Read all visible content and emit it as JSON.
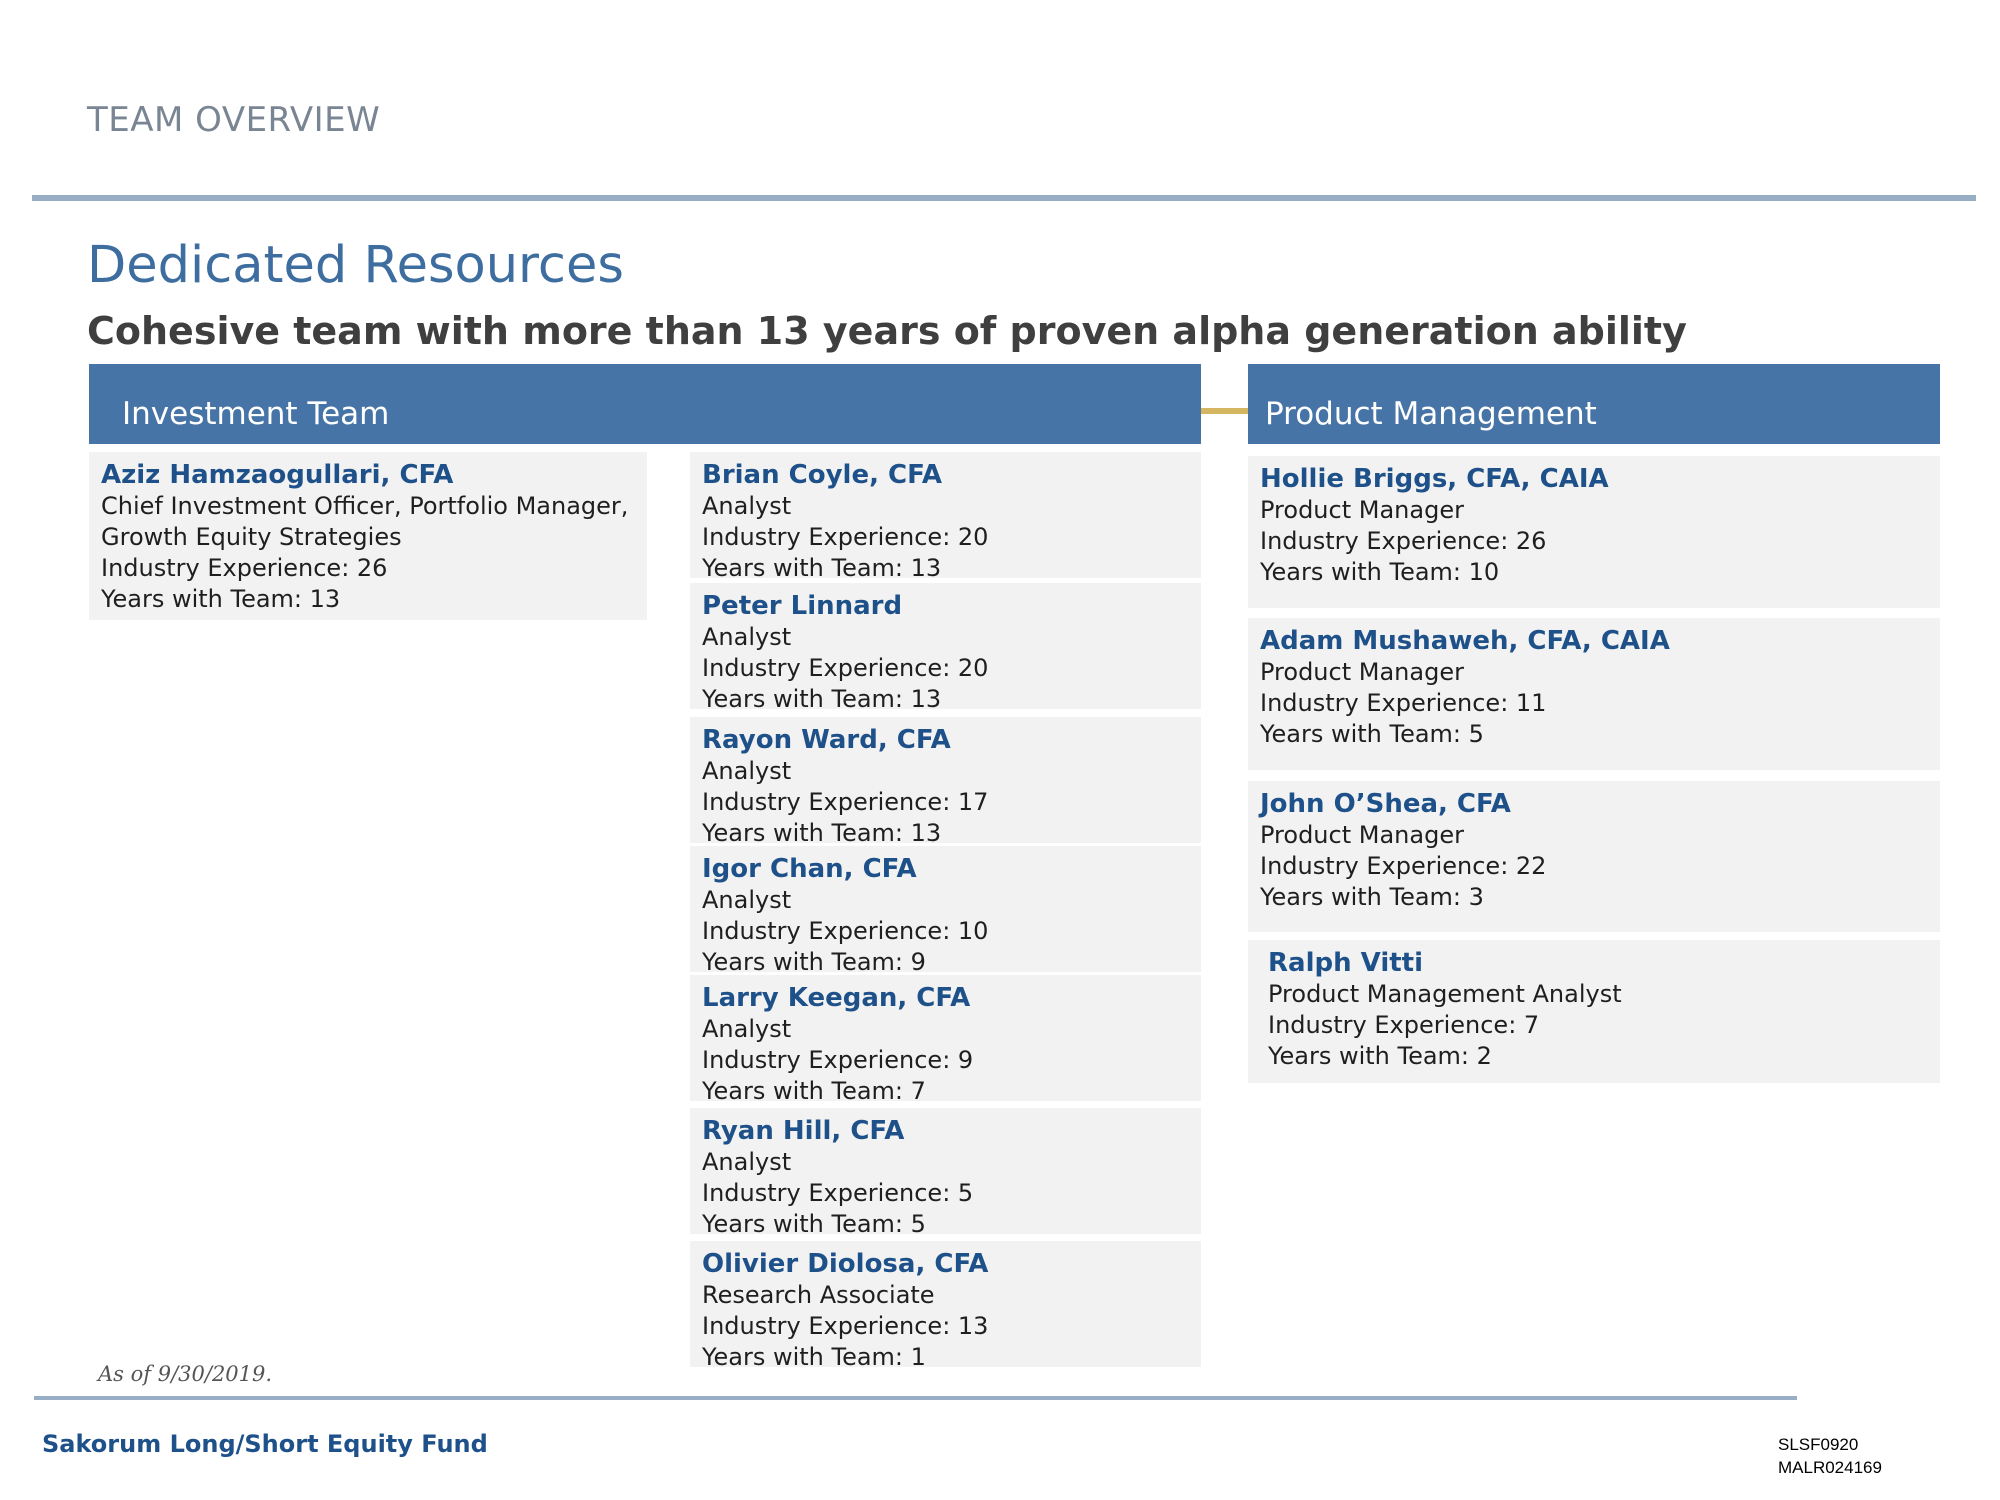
{
  "header": {
    "section_label": "TEAM OVERVIEW",
    "title": "Dedicated Resources",
    "subtitle": "Cohesive team with more than 13 years of proven alpha generation ability"
  },
  "investment_team": {
    "heading": "Investment Team",
    "lead": {
      "name": "Aziz Hamzaogullari, CFA",
      "role_line1": "Chief Investment Officer, Portfolio Manager,",
      "role_line2": "Growth Equity Strategies",
      "experience": "Industry Experience: 26",
      "tenure": "Years with Team: 13"
    },
    "members": [
      {
        "name": "Brian Coyle, CFA",
        "role": "Analyst",
        "experience": "Industry Experience: 20",
        "tenure": "Years with Team: 13"
      },
      {
        "name": "Peter Linnard",
        "role": "Analyst",
        "experience": "Industry Experience: 20",
        "tenure": "Years with Team: 13"
      },
      {
        "name": "Rayon Ward, CFA",
        "role": "Analyst",
        "experience": "Industry Experience: 17",
        "tenure": "Years with Team: 13"
      },
      {
        "name": "Igor Chan, CFA",
        "role": "Analyst",
        "experience": "Industry Experience: 10",
        "tenure": "Years with Team: 9"
      },
      {
        "name": "Larry Keegan, CFA",
        "role": "Analyst",
        "experience": "Industry Experience: 9",
        "tenure": "Years with Team: 7"
      },
      {
        "name": "Ryan Hill, CFA",
        "role": "Analyst",
        "experience": "Industry Experience: 5",
        "tenure": "Years with Team: 5"
      },
      {
        "name": "Olivier Diolosa, CFA",
        "role": "Research Associate",
        "experience": "Industry Experience: 13",
        "tenure": "Years with Team: 1"
      }
    ]
  },
  "product_management": {
    "heading": "Product Management",
    "members": [
      {
        "name": "Hollie Briggs, CFA, CAIA",
        "role": "Product Manager",
        "experience": "Industry Experience: 26",
        "tenure": "Years with Team: 10"
      },
      {
        "name": "Adam Mushaweh, CFA, CAIA",
        "role": "Product Manager",
        "experience": "Industry Experience: 11",
        "tenure": "Years with Team: 5"
      },
      {
        "name": "John O’Shea, CFA",
        "role": "Product Manager",
        "experience": "Industry Experience: 22",
        "tenure": "Years with Team: 3"
      },
      {
        "name": "Ralph Vitti",
        "role": "Product Management Analyst",
        "experience": "Industry Experience: 7",
        "tenure": "Years with Team: 2"
      }
    ]
  },
  "footer": {
    "as_of": "As of 9/30/2019.",
    "fund_name": "Sakorum Long/Short Equity Fund",
    "code1": "SLSF0920",
    "code2": "MALR024169"
  },
  "colors": {
    "header_band": "#4774a6",
    "name_text": "#1e5189",
    "card_bg": "#f2f2f2",
    "rule": "#97aec4",
    "connector": "#d4b560"
  }
}
